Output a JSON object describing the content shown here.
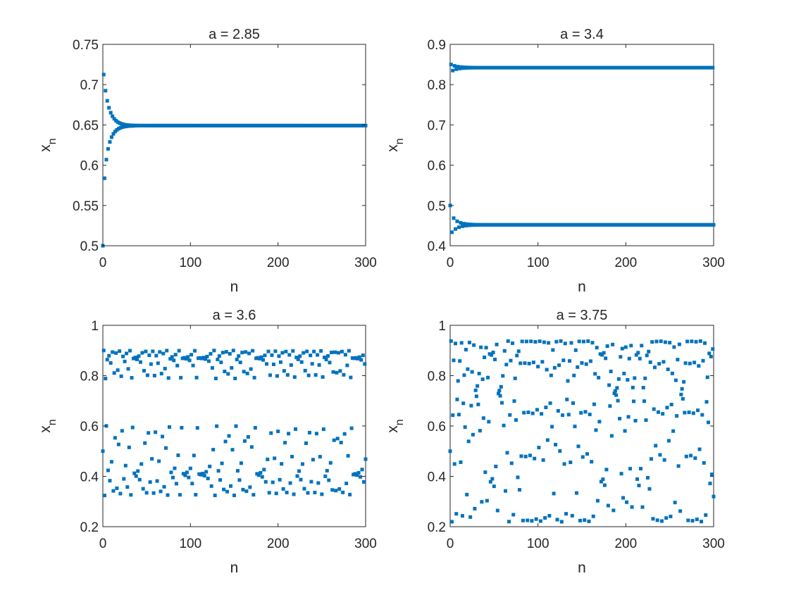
{
  "marker_color": "#0072BD",
  "axis_color": "#262626",
  "chart_data": [
    {
      "type": "scatter",
      "title": "a = 2.85",
      "a": 2.85,
      "x0": 0.5,
      "x": "n = 0..300 (iterates of x_{n+1} = a x_n (1 - x_n))",
      "n_range": [
        0,
        300
      ],
      "xlim": [
        0,
        300
      ],
      "ylim": [
        0.5,
        0.75
      ],
      "xticks": [
        0,
        100,
        200,
        300
      ],
      "yticks": [
        0.5,
        0.55,
        0.6,
        0.65,
        0.7,
        0.75
      ],
      "xtick_labels": [
        "0",
        "100",
        "200",
        "300"
      ],
      "ytick_labels": [
        "0.5",
        "0.55",
        "0.6",
        "0.65",
        "0.7",
        "0.75"
      ],
      "xlabel": "n",
      "ylabel": "x",
      "ylabel_sub": "n",
      "grid": false,
      "legend": "none"
    },
    {
      "type": "scatter",
      "title": "a = 3.4",
      "a": 3.4,
      "x0": 0.5,
      "n_range": [
        0,
        300
      ],
      "xlim": [
        0,
        300
      ],
      "ylim": [
        0.4,
        0.9
      ],
      "xticks": [
        0,
        100,
        200,
        300
      ],
      "yticks": [
        0.4,
        0.5,
        0.6,
        0.7,
        0.8,
        0.9
      ],
      "xtick_labels": [
        "0",
        "100",
        "200",
        "300"
      ],
      "ytick_labels": [
        "0.4",
        "0.5",
        "0.6",
        "0.7",
        "0.8",
        "0.9"
      ],
      "xlabel": "n",
      "ylabel": "x",
      "ylabel_sub": "n",
      "grid": false,
      "legend": "none"
    },
    {
      "type": "scatter",
      "title": "a = 3.6",
      "a": 3.6,
      "x0": 0.5,
      "n_range": [
        0,
        300
      ],
      "xlim": [
        0,
        300
      ],
      "ylim": [
        0.2,
        1
      ],
      "xticks": [
        0,
        100,
        200,
        300
      ],
      "yticks": [
        0.2,
        0.4,
        0.6,
        0.8,
        1
      ],
      "xtick_labels": [
        "0",
        "100",
        "200",
        "300"
      ],
      "ytick_labels": [
        "0.2",
        "0.4",
        "0.6",
        "0.8",
        "1"
      ],
      "xlabel": "n",
      "ylabel": "x",
      "ylabel_sub": "n",
      "grid": false,
      "legend": "none"
    },
    {
      "type": "scatter",
      "title": "a = 3.75",
      "a": 3.75,
      "x0": 0.5,
      "n_range": [
        0,
        300
      ],
      "xlim": [
        0,
        300
      ],
      "ylim": [
        0.2,
        1
      ],
      "xticks": [
        0,
        100,
        200,
        300
      ],
      "yticks": [
        0.2,
        0.4,
        0.6,
        0.8,
        1
      ],
      "xtick_labels": [
        "0",
        "100",
        "200",
        "300"
      ],
      "ytick_labels": [
        "0.2",
        "0.4",
        "0.6",
        "0.8",
        "1"
      ],
      "xlabel": "n",
      "ylabel": "x",
      "ylabel_sub": "n",
      "grid": false,
      "legend": "none"
    }
  ]
}
